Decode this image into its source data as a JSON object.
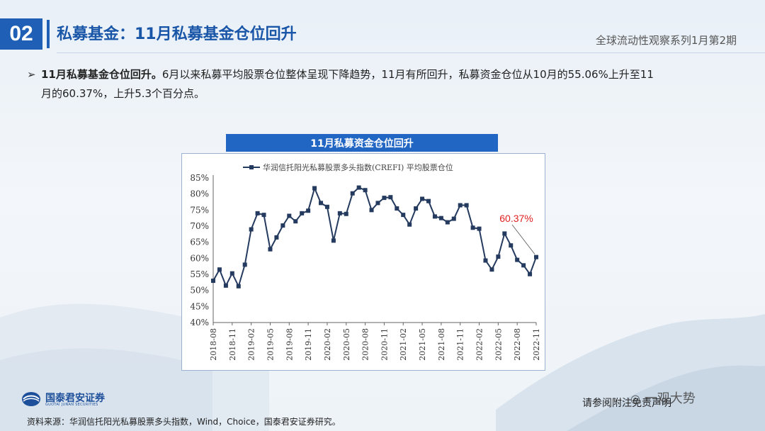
{
  "header": {
    "section_number": "02",
    "title": "私募基金：11月私募基金仓位回升",
    "series_name": "全球流动性观察系列1月第2期"
  },
  "bullet": {
    "bold_lead": "11月私募基金仓位回升。",
    "text_line1": "6月以来私募平均股票仓位整体呈现下降趋势，11月有所回升，私募资金仓位从10月的55.06%上升至11",
    "text_line2": "月的60.37%，上升5.3个百分点。"
  },
  "chart_title": "11月私募资金仓位回升",
  "chart_data": {
    "type": "line",
    "legend": "华润信托阳光私募股票多头指数(CREFI) 平均股票仓位",
    "legend_position": "top",
    "ylim": [
      40,
      85
    ],
    "yticks": [
      "40%",
      "45%",
      "50%",
      "55%",
      "60%",
      "65%",
      "70%",
      "75%",
      "80%",
      "85%"
    ],
    "xtick_labels": [
      "2018-08",
      "2018-11",
      "2019-02",
      "2019-05",
      "2019-08",
      "2019-11",
      "2020-02",
      "2020-05",
      "2020-08",
      "2020-11",
      "2021-02",
      "2021-05",
      "2021-08",
      "2021-11",
      "2022-02",
      "2022-05",
      "2022-08",
      "2022-11"
    ],
    "annotation": "60.37%",
    "annotation_color": "#e02020",
    "line_color": "#243a5e",
    "grid": false,
    "x": [
      "2018-08",
      "2018-09",
      "2018-10",
      "2018-11",
      "2018-12",
      "2019-01",
      "2019-02",
      "2019-03",
      "2019-04",
      "2019-05",
      "2019-06",
      "2019-07",
      "2019-08",
      "2019-09",
      "2019-10",
      "2019-11",
      "2019-12",
      "2020-01",
      "2020-02",
      "2020-03",
      "2020-04",
      "2020-05",
      "2020-06",
      "2020-07",
      "2020-08",
      "2020-09",
      "2020-10",
      "2020-11",
      "2020-12",
      "2021-01",
      "2021-02",
      "2021-03",
      "2021-04",
      "2021-05",
      "2021-06",
      "2021-07",
      "2021-08",
      "2021-09",
      "2021-10",
      "2021-11",
      "2021-12",
      "2022-01",
      "2022-02",
      "2022-03",
      "2022-04",
      "2022-05",
      "2022-06",
      "2022-07",
      "2022-08",
      "2022-09",
      "2022-10",
      "2022-11"
    ],
    "values": [
      53.0,
      56.5,
      51.5,
      55.3,
      51.3,
      58.0,
      69.0,
      74.0,
      73.5,
      62.8,
      66.5,
      70.2,
      73.2,
      71.5,
      74.0,
      74.8,
      81.8,
      77.2,
      76.0,
      65.5,
      74.0,
      73.8,
      80.2,
      82.0,
      81.2,
      75.0,
      77.2,
      78.8,
      79.0,
      75.5,
      73.5,
      70.5,
      75.5,
      78.5,
      77.8,
      73.0,
      72.5,
      71.2,
      72.3,
      76.5,
      76.5,
      69.5,
      69.2,
      59.3,
      56.5,
      60.5,
      67.7,
      64.0,
      59.5,
      57.8,
      55.06,
      60.37
    ]
  },
  "footer": {
    "logo_cn": "国泰君安证券",
    "logo_en": "GUOTAI JUNAN SECURITIES",
    "disclaimer": "请参阅附注免责声明",
    "watermark": "一观大势",
    "source": "资料来源：华润信托阳光私募股票多头指数，Wind，Choice，国泰君安证券研究。"
  },
  "colors": {
    "accent_blue": "#1f5fb5",
    "title_blue": "#1a56a8"
  }
}
